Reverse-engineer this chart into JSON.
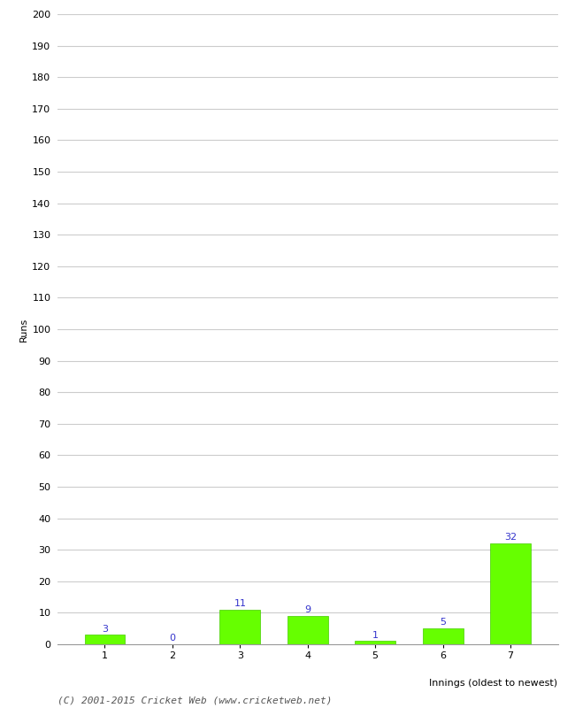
{
  "categories": [
    "1",
    "2",
    "3",
    "4",
    "5",
    "6",
    "7"
  ],
  "values": [
    3,
    0,
    11,
    9,
    1,
    5,
    32
  ],
  "bar_color": "#66ff00",
  "bar_edge_color": "#44cc00",
  "label_color": "#3333cc",
  "xlabel": "Innings (oldest to newest)",
  "ylabel": "Runs",
  "ylim": [
    0,
    200
  ],
  "yticks": [
    0,
    10,
    20,
    30,
    40,
    50,
    60,
    70,
    80,
    90,
    100,
    110,
    120,
    130,
    140,
    150,
    160,
    170,
    180,
    190,
    200
  ],
  "background_color": "#ffffff",
  "grid_color": "#cccccc",
  "footnote": "(C) 2001-2015 Cricket Web (www.cricketweb.net)",
  "xlabel_fontsize": 8,
  "ylabel_fontsize": 8,
  "tick_fontsize": 8,
  "label_fontsize": 8,
  "footnote_fontsize": 8
}
